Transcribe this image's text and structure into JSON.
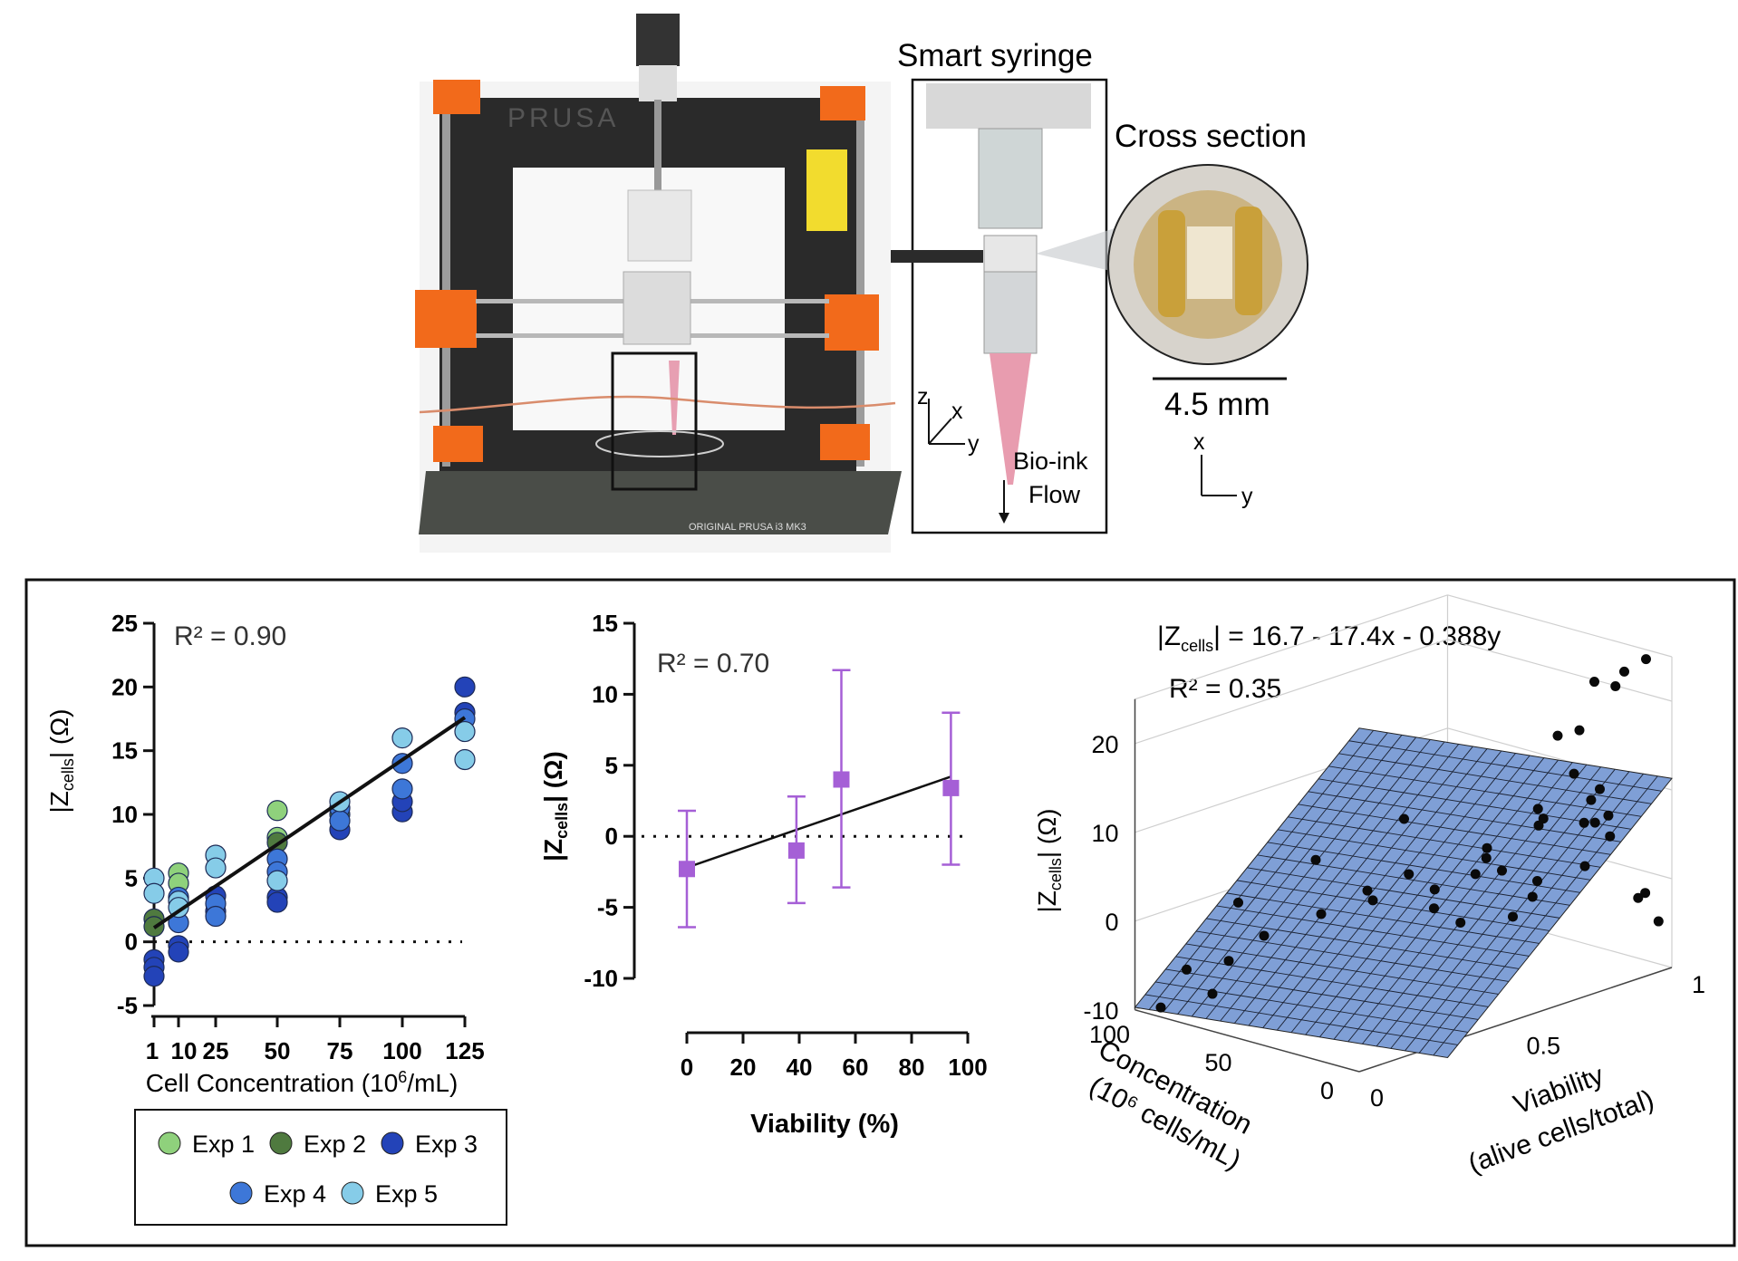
{
  "figure": {
    "syringe_title": "Smart syringe",
    "cross_section_title": "Cross section",
    "scale_label": "4.5 mm",
    "bio_ink_label": [
      "Bio-ink",
      "Flow"
    ],
    "axes_3d": {
      "z": "z",
      "x": "x",
      "y": "y"
    },
    "axes_2d": {
      "x": "x",
      "y": "y"
    },
    "printer_brand": "PRUSA",
    "printer_bed_text": "ORIGINAL PRUSA i3 MK3"
  },
  "colors": {
    "exp1": "#8fd17c",
    "exp2": "#4f7a3f",
    "exp3": "#2343b8",
    "exp4": "#3d77d8",
    "exp5": "#86cce8",
    "purple": "#a55fd6",
    "plane": "#7f9fd6",
    "printer_orange": "#f26a1b"
  },
  "chart_data": [
    {
      "type": "scatter",
      "title": "",
      "annotation": "R² = 0.90",
      "ylabel": "|Zcells| (Ω)",
      "ylabel_main": "|Z",
      "ylabel_sub": "cells",
      "ylabel_tail": "| (Ω)",
      "xlabel": "Cell Concentration (10⁶/mL)",
      "xlabel_pre": "Cell Concentration (10",
      "xlabel_sup": "6",
      "xlabel_post": "/mL)",
      "ylim": [
        -5,
        25
      ],
      "yticks": [
        "-5",
        "0",
        "5",
        "10",
        "15",
        "20",
        "25"
      ],
      "xticks": [
        "1",
        "10",
        "25",
        "50",
        "75",
        "100",
        "125"
      ],
      "xtick_values": [
        1,
        10,
        25,
        50,
        75,
        100,
        125
      ],
      "fit_line": {
        "x": [
          1,
          125
        ],
        "y": [
          1.1,
          17.6
        ]
      },
      "legend": [
        "Exp 1",
        "Exp 2",
        "Exp 3",
        "Exp 4",
        "Exp 5"
      ],
      "series": [
        {
          "name": "Exp 1",
          "points": [
            [
              10,
              5.4
            ],
            [
              10,
              4.6
            ],
            [
              50,
              10.3
            ],
            [
              50,
              8.2
            ]
          ]
        },
        {
          "name": "Exp 2",
          "points": [
            [
              1,
              1.8
            ],
            [
              1,
              1.2
            ],
            [
              50,
              7.8
            ],
            [
              75,
              10.0
            ]
          ]
        },
        {
          "name": "Exp 3",
          "points": [
            [
              1,
              -1.4
            ],
            [
              1,
              -2.0
            ],
            [
              1,
              -2.7
            ],
            [
              10,
              -0.3
            ],
            [
              10,
              -0.8
            ],
            [
              25,
              2.4
            ],
            [
              25,
              3.6
            ],
            [
              50,
              3.5
            ],
            [
              50,
              3.1
            ],
            [
              75,
              8.8
            ],
            [
              100,
              10.2
            ],
            [
              100,
              11.0
            ],
            [
              125,
              20.0
            ],
            [
              125,
              18.0
            ]
          ]
        },
        {
          "name": "Exp 4",
          "points": [
            [
              10,
              3.5
            ],
            [
              10,
              1.5
            ],
            [
              25,
              3.0
            ],
            [
              25,
              2.0
            ],
            [
              50,
              6.5
            ],
            [
              50,
              5.5
            ],
            [
              75,
              10.5
            ],
            [
              75,
              9.5
            ],
            [
              100,
              14.0
            ],
            [
              100,
              12.0
            ],
            [
              125,
              17.5
            ]
          ]
        },
        {
          "name": "Exp 5",
          "points": [
            [
              1,
              5.0
            ],
            [
              1,
              3.8
            ],
            [
              10,
              3.2
            ],
            [
              10,
              2.7
            ],
            [
              25,
              6.8
            ],
            [
              25,
              5.8
            ],
            [
              50,
              4.8
            ],
            [
              75,
              11.0
            ],
            [
              100,
              16.0
            ],
            [
              125,
              16.5
            ],
            [
              125,
              14.3
            ]
          ]
        }
      ]
    },
    {
      "type": "scatter",
      "title": "",
      "annotation": "R² = 0.70",
      "ylabel": "|Zcells| (Ω)",
      "ylabel_main": "|Z",
      "ylabel_sub": "cells",
      "ylabel_tail": "| (Ω)",
      "xlabel": "Viability (%)",
      "ylim": [
        -10,
        15
      ],
      "xlim": [
        0,
        100
      ],
      "yticks": [
        "-10",
        "-5",
        "0",
        "5",
        "10",
        "15"
      ],
      "ytick_values": [
        -10,
        -5,
        0,
        5,
        10,
        15
      ],
      "xticks": [
        "0",
        "20",
        "40",
        "60",
        "80",
        "100"
      ],
      "xtick_values": [
        0,
        20,
        40,
        60,
        80,
        100
      ],
      "points": [
        {
          "x": 0,
          "y": -2.3,
          "err_low": -6.4,
          "err_high": 1.8
        },
        {
          "x": 39,
          "y": -1.0,
          "err_low": -4.7,
          "err_high": 2.8
        },
        {
          "x": 55,
          "y": 4.0,
          "err_low": -3.6,
          "err_high": 11.7
        },
        {
          "x": 94,
          "y": 3.4,
          "err_low": -2.0,
          "err_high": 8.7
        }
      ],
      "fit_line": {
        "x": [
          0,
          94
        ],
        "y": [
          -2.2,
          4.2
        ]
      }
    },
    {
      "type": "scatter3d",
      "title": "|Zcells| = 16.7 - 17.4x - 0.388y",
      "title_pre": "|Z",
      "title_sub": "cells",
      "title_post": "| = 16.7 - 17.4x - 0.388y",
      "annotation": "R² = 0.35",
      "zlabel_main": "|Z",
      "zlabel_sub": "cells",
      "zlabel_tail": "| (Ω)",
      "xlabel": [
        "Concentration",
        "(10⁶ cells/mL)"
      ],
      "ylabel": [
        "Viability",
        "(alive cells/total)"
      ],
      "zticks": [
        "-10",
        "0",
        "10",
        "20"
      ],
      "ztick_values": [
        -10,
        0,
        10,
        20
      ],
      "concentration_ticks": [
        "0",
        "50",
        "100"
      ],
      "viability_ticks": [
        "0",
        "0.5",
        "1"
      ],
      "plane": {
        "intercept": 16.7,
        "coef_viability": -17.4,
        "coef_concentration": -0.388
      },
      "points": [
        [
          5,
          0.95,
          25
        ],
        [
          8,
          0.9,
          24
        ],
        [
          15,
          0.85,
          23
        ],
        [
          20,
          0.95,
          21
        ],
        [
          10,
          0.7,
          19
        ],
        [
          30,
          0.9,
          16
        ],
        [
          25,
          0.85,
          12
        ],
        [
          20,
          0.9,
          10
        ],
        [
          35,
          0.8,
          8
        ],
        [
          40,
          0.85,
          6
        ],
        [
          50,
          0.9,
          4
        ],
        [
          60,
          0.8,
          2
        ],
        [
          45,
          0.7,
          3
        ],
        [
          55,
          0.6,
          0
        ],
        [
          70,
          0.5,
          -1
        ],
        [
          80,
          0.4,
          -2
        ],
        [
          30,
          0.95,
          5
        ],
        [
          35,
          0.97,
          7
        ],
        [
          40,
          0.98,
          4
        ],
        [
          25,
          0.96,
          6
        ],
        [
          10,
          0.98,
          -2
        ],
        [
          15,
          0.99,
          -3
        ],
        [
          5,
          0.99,
          -5
        ],
        [
          90,
          0.2,
          1
        ],
        [
          100,
          0.1,
          -6
        ],
        [
          110,
          0.3,
          -8
        ],
        [
          95,
          0.15,
          -9
        ],
        [
          105,
          0.05,
          -10
        ],
        [
          60,
          0.55,
          2
        ],
        [
          65,
          0.45,
          1
        ],
        [
          75,
          0.35,
          5
        ],
        [
          85,
          0.25,
          -3
        ],
        [
          50,
          0.65,
          -4
        ],
        [
          45,
          0.75,
          1
        ],
        [
          55,
          0.85,
          -6
        ],
        [
          20,
          0.7,
          2
        ],
        [
          70,
          0.6,
          7
        ],
        [
          40,
          0.5,
          0
        ],
        [
          35,
          0.6,
          3
        ],
        [
          30,
          0.75,
          -1
        ],
        [
          15,
          0.9,
          5
        ],
        [
          12,
          0.8,
          3
        ]
      ]
    }
  ]
}
